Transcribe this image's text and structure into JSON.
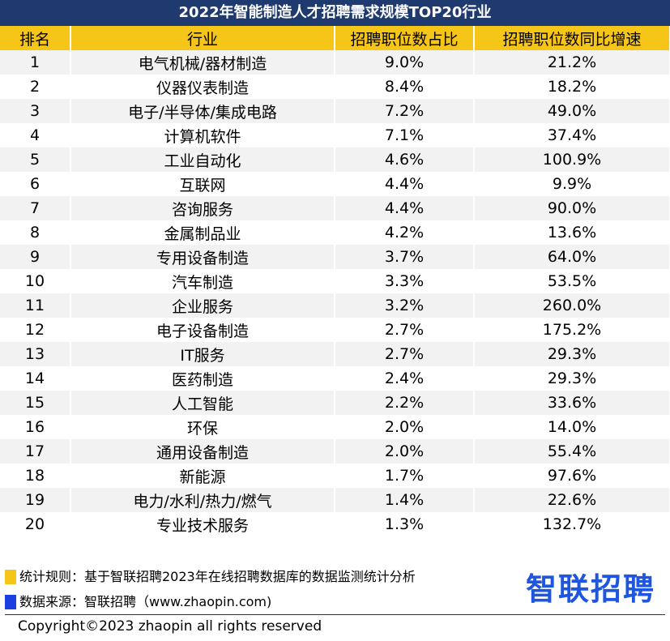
{
  "title": "2022年智能制造人才招聘需求规模TOP20行业",
  "table": {
    "headers": [
      "排名",
      "行业",
      "招聘职位数占比",
      "招聘职位数同比增速"
    ],
    "rows": [
      [
        "1",
        "电气机械/器材制造",
        "9.0%",
        "21.2%"
      ],
      [
        "2",
        "仪器仪表制造",
        "8.4%",
        "18.2%"
      ],
      [
        "3",
        "电子/半导体/集成电路",
        "7.2%",
        "49.0%"
      ],
      [
        "4",
        "计算机软件",
        "7.1%",
        "37.4%"
      ],
      [
        "5",
        "工业自动化",
        "4.6%",
        "100.9%"
      ],
      [
        "6",
        "互联网",
        "4.4%",
        "9.9%"
      ],
      [
        "7",
        "咨询服务",
        "4.4%",
        "90.0%"
      ],
      [
        "8",
        "金属制品业",
        "4.2%",
        "13.6%"
      ],
      [
        "9",
        "专用设备制造",
        "3.7%",
        "64.0%"
      ],
      [
        "10",
        "汽车制造",
        "3.3%",
        "53.5%"
      ],
      [
        "11",
        "企业服务",
        "3.2%",
        "260.0%"
      ],
      [
        "12",
        "电子设备制造",
        "2.7%",
        "175.2%"
      ],
      [
        "13",
        "IT服务",
        "2.7%",
        "29.3%"
      ],
      [
        "14",
        "医药制造",
        "2.4%",
        "29.3%"
      ],
      [
        "15",
        "人工智能",
        "2.2%",
        "33.6%"
      ],
      [
        "16",
        "环保",
        "2.0%",
        "14.0%"
      ],
      [
        "17",
        "通用设备制造",
        "2.0%",
        "55.4%"
      ],
      [
        "18",
        "新能源",
        "1.7%",
        "97.6%"
      ],
      [
        "19",
        "电力/水利/热力/燃气",
        "1.4%",
        "22.6%"
      ],
      [
        "20",
        "专业技术服务",
        "1.3%",
        "132.7%"
      ]
    ]
  },
  "notes": [
    "统计规则：基于智联招聘2023年在线招聘数据库的数据监测统计分析",
    "数据来源：智联招聘（www.zhaopin.com)"
  ],
  "logo": "智联招聘",
  "copyright": "Copyright©2023 zhaopin all rights reserved"
}
